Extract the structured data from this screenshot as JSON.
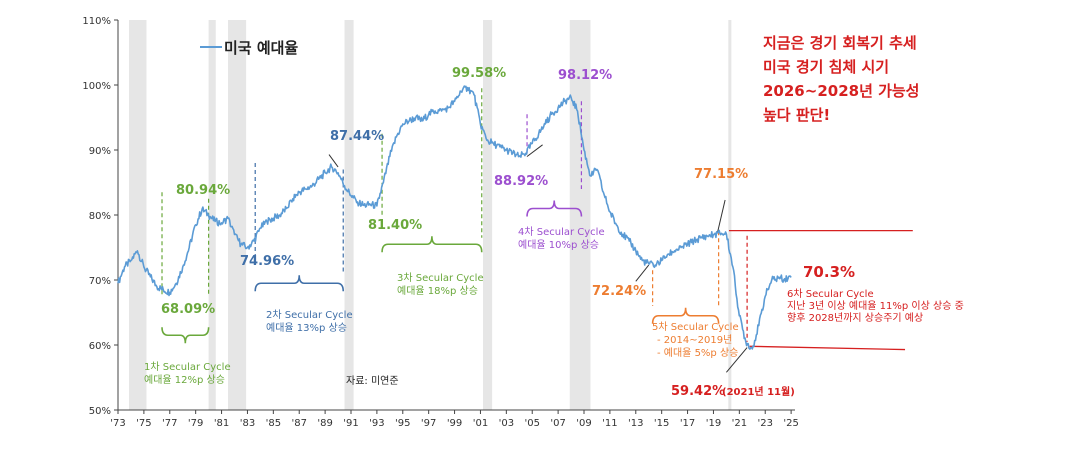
{
  "chart_data": {
    "type": "line",
    "legend": "미국 예대율",
    "ylim": [
      50,
      110
    ],
    "yticks": [
      "50%",
      "60%",
      "70%",
      "80%",
      "90%",
      "100%",
      "110%"
    ],
    "xticks": [
      "'73",
      "'75",
      "'77",
      "'79",
      "'81",
      "'83",
      "'85",
      "'87",
      "'89",
      "'91",
      "'93",
      "'95",
      "'97",
      "'99",
      "'01",
      "'03",
      "'05",
      "'07",
      "'09",
      "'11",
      "'13",
      "'15",
      "'17",
      "'19",
      "'21",
      "'23",
      "'25"
    ],
    "x": [
      1973.0,
      1973.5,
      1974.0,
      1974.5,
      1975.0,
      1975.5,
      1976.0,
      1976.5,
      1977.0,
      1977.5,
      1978.0,
      1978.5,
      1979.0,
      1979.5,
      1980.0,
      1980.5,
      1981.0,
      1981.5,
      1982.0,
      1982.5,
      1983.0,
      1983.5,
      1984.0,
      1984.5,
      1985.0,
      1985.5,
      1986.0,
      1986.5,
      1987.0,
      1987.5,
      1988.0,
      1988.5,
      1989.0,
      1989.5,
      1990.0,
      1990.5,
      1991.0,
      1991.5,
      1992.0,
      1992.5,
      1993.0,
      1993.5,
      1994.0,
      1994.5,
      1995.0,
      1995.5,
      1996.0,
      1996.5,
      1997.0,
      1997.5,
      1998.0,
      1998.5,
      1999.0,
      1999.5,
      2000.0,
      2000.5,
      2001.0,
      2001.5,
      2002.0,
      2002.5,
      2003.0,
      2003.5,
      2004.0,
      2004.5,
      2005.0,
      2005.5,
      2006.0,
      2006.5,
      2007.0,
      2007.5,
      2008.0,
      2008.5,
      2009.0,
      2009.5,
      2010.0,
      2010.5,
      2011.0,
      2011.5,
      2012.0,
      2012.5,
      2013.0,
      2013.5,
      2014.0,
      2014.5,
      2015.0,
      2015.5,
      2016.0,
      2016.5,
      2017.0,
      2017.5,
      2018.0,
      2018.5,
      2019.0,
      2019.5,
      2020.0,
      2020.5,
      2021.0,
      2021.5,
      2022.0,
      2022.5,
      2023.0,
      2023.5,
      2024.0,
      2024.5,
      2025.0
    ],
    "values": [
      69.5,
      72.0,
      73.0,
      74.5,
      72.0,
      70.5,
      69.0,
      68.5,
      68.1,
      69.5,
      72.0,
      75.0,
      78.5,
      80.9,
      80.0,
      79.0,
      78.8,
      79.5,
      77.0,
      75.5,
      75.0,
      76.0,
      78.0,
      79.0,
      79.5,
      80.0,
      81.0,
      82.5,
      83.5,
      84.0,
      84.5,
      85.5,
      86.5,
      87.4,
      86.5,
      84.5,
      83.0,
      82.0,
      81.5,
      81.6,
      81.4,
      85.0,
      89.0,
      92.0,
      94.0,
      94.5,
      95.0,
      94.5,
      95.5,
      96.0,
      96.0,
      96.5,
      97.5,
      99.0,
      99.6,
      98.5,
      94.0,
      91.5,
      91.0,
      90.5,
      90.0,
      89.5,
      89.0,
      89.5,
      91.0,
      92.5,
      94.0,
      95.5,
      96.5,
      97.5,
      98.1,
      96.0,
      90.0,
      86.0,
      87.0,
      83.5,
      80.5,
      78.5,
      77.0,
      76.0,
      74.5,
      73.0,
      72.5,
      72.3,
      73.0,
      74.0,
      74.5,
      75.0,
      75.5,
      76.0,
      76.5,
      76.8,
      77.0,
      77.2,
      77.1,
      72.0,
      64.5,
      60.5,
      59.4,
      63.0,
      67.5,
      70.0,
      70.3,
      70.2,
      70.4
    ],
    "gray_bands": [
      [
        1973.85,
        1975.2
      ],
      [
        1980.0,
        1980.55
      ],
      [
        1981.5,
        1982.9
      ],
      [
        1990.5,
        1991.2
      ],
      [
        2001.2,
        2001.9
      ],
      [
        2007.9,
        2009.5
      ],
      [
        2020.15,
        2020.35
      ]
    ],
    "annotations": {
      "peak1": "80.94%",
      "trough1": "68.09%",
      "peak2": "87.44%",
      "trough2": "74.96%",
      "peak3": "99.58%",
      "trough3": "81.40%",
      "peak4": "98.12%",
      "trough4": "88.92%",
      "peak5": "77.15%",
      "trough5": "72.24%",
      "trough6": "59.42%",
      "trough6_date": "(2021년 11월)",
      "current": "70.3%"
    },
    "cycles": {
      "c1_line1": "1차 Secular Cycle",
      "c1_line2": "예대율 12%p 상승",
      "c2_line1": "2차 Secular Cycle",
      "c2_line2": "예대율 13%p 상승",
      "c3_line1": "3차 Secular Cycle",
      "c3_line2": "예대율 18%p 상승",
      "c4_line1": "4차 Secular Cycle",
      "c4_line2": "예대율 10%p 상승",
      "c5_line1": "5차 Secular Cycle",
      "c5_line2": "- 2014~2019년",
      "c5_line3": "- 예대율 5%p 상승",
      "c6_line1": "6차 Secular Cycle",
      "c6_line2": "지난 3년 이상 예대율 11%p 이상 상승 중",
      "c6_line3": "향후 2028년까지 상승주기 예상"
    },
    "source": "자료: 미연준",
    "callout": [
      "지금은 경기 회복기 추세",
      "미국 경기 침체 시기",
      "2026~2028년 가능성",
      "높다 판단!"
    ]
  },
  "colors": {
    "line": "#5b9bd5",
    "green": "#6aa83b",
    "blue": "#3f6fa8",
    "purple": "#9c4fcf",
    "orange": "#ed7d31",
    "red": "#d62020",
    "band": "#e6e6e6"
  }
}
